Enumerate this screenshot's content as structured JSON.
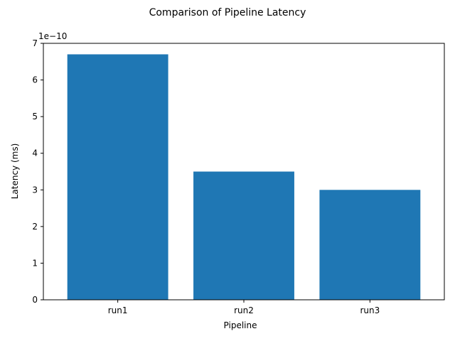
{
  "chart_data": {
    "type": "bar",
    "title": "Comparison of Pipeline Latency",
    "xlabel": "Pipeline",
    "ylabel": "Latency (ms)",
    "categories": [
      "run1",
      "run2",
      "run3"
    ],
    "values": [
      6.7e-10,
      3.5e-10,
      3e-10
    ],
    "ylim": [
      0,
      7e-10
    ],
    "yticks": [
      0,
      1e-10,
      2e-10,
      3e-10,
      4e-10,
      5e-10,
      6e-10,
      7e-10
    ],
    "ytick_labels": [
      "0",
      "1",
      "2",
      "3",
      "4",
      "5",
      "6",
      "7"
    ],
    "offset_label": "1e−10",
    "grid": false,
    "bar_color": "#1f77b4"
  }
}
